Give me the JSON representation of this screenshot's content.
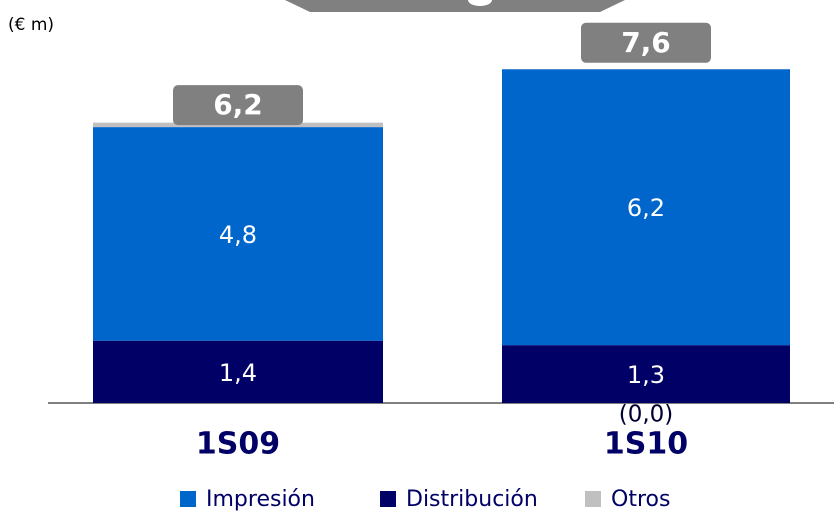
{
  "chart_data": {
    "type": "stacked_bar",
    "unit_label": "(€ m)",
    "categories": [
      "1S09",
      "1S10"
    ],
    "series": [
      {
        "name": "Impresión",
        "color": "#0066cc",
        "values": [
          4.8,
          6.2
        ],
        "value_labels": [
          "4,8",
          "6,2"
        ]
      },
      {
        "name": "Distribución",
        "color": "#000066",
        "values": [
          1.4,
          1.3
        ],
        "value_labels": [
          "1,4",
          "1,3"
        ]
      },
      {
        "name": "Otros",
        "color": "#c0c0c0",
        "values": [
          0.1,
          0.0
        ],
        "value_labels": [
          "0,1",
          "(0,0)"
        ]
      }
    ],
    "totals": [
      6.2,
      7.6
    ],
    "total_labels": [
      "6,2",
      "7,6"
    ]
  }
}
